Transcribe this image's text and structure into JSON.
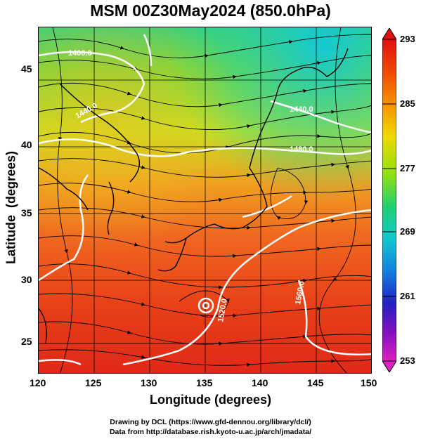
{
  "title": "MSM 00Z30May2024 (850.0hPa)",
  "x_axis": {
    "title": "Longitude (degrees)",
    "ticks": [
      "120",
      "125",
      "130",
      "135",
      "140",
      "145",
      "150"
    ]
  },
  "y_axis": {
    "title": "Latitude  (degrees)",
    "ticks": [
      "25",
      "30",
      "35",
      "40",
      "45"
    ]
  },
  "contour_labels": [
    "1400.0",
    "1440.0",
    "1480.0",
    "1440.0",
    "1520.0",
    "1560.0"
  ],
  "colorbar": {
    "labels": [
      "293",
      "285",
      "277",
      "269",
      "261",
      "253"
    ],
    "colors": [
      "#d81010",
      "#f05000",
      "#f5a000",
      "#f0e000",
      "#90e000",
      "#20d080",
      "#10c0d0",
      "#2060e0",
      "#2020b0",
      "#a000c0",
      "#e020c0"
    ]
  },
  "credits": {
    "line1": "Drawing by DCL (https://www.gfd-dennou.org/library/dcl/)",
    "line2": "Data from http://database.rish.kyoto-u.ac.jp/arch/jmadata/"
  }
}
